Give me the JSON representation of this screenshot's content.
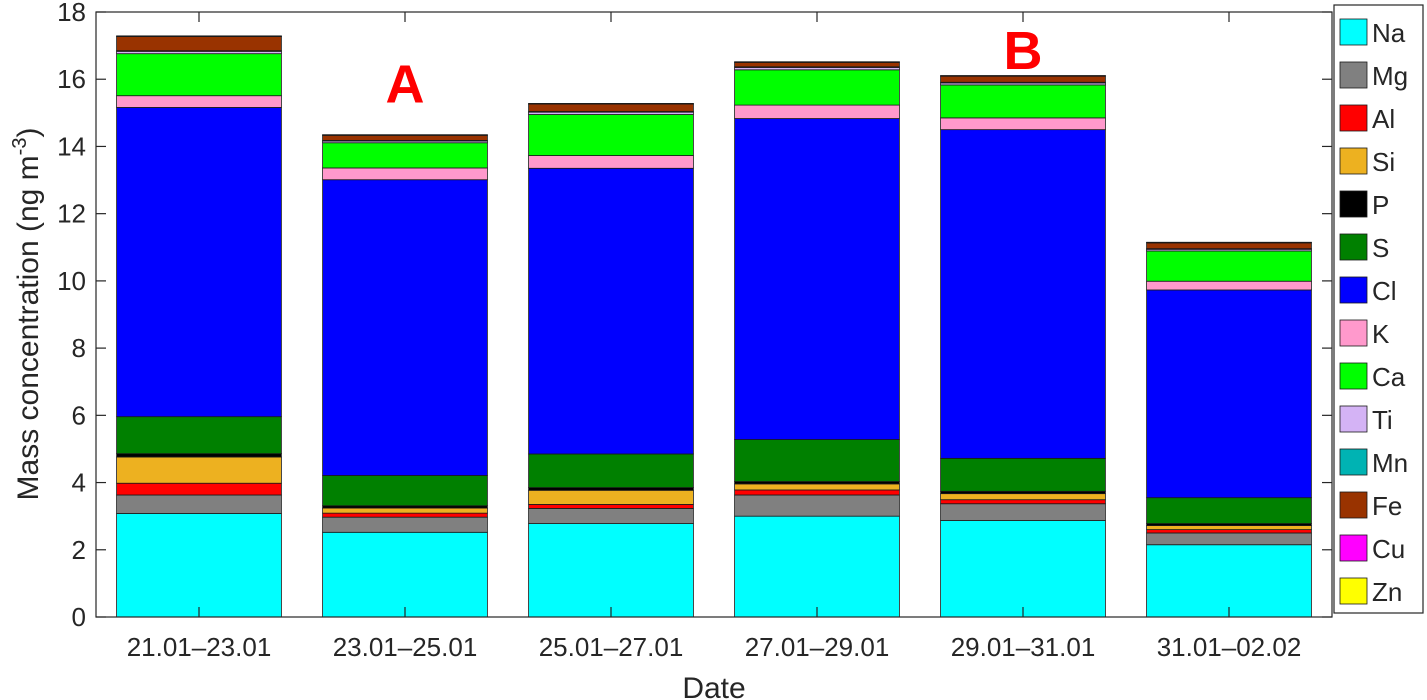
{
  "chart_data": {
    "type": "bar",
    "stacked": true,
    "title": "",
    "xlabel": "Date",
    "ylabel": "Mass concentration (ng m",
    "ylabel_superscript": "-3",
    "ylabel_close": ")",
    "ylim": [
      0,
      18
    ],
    "yticks": [
      0,
      2,
      4,
      6,
      8,
      10,
      12,
      14,
      16,
      18
    ],
    "grid": false,
    "legend_position": "right",
    "categories": [
      "21.01–23.01",
      "23.01–25.01",
      "25.01–27.01",
      "27.01–29.01",
      "29.01–31.01",
      "31.01–02.02"
    ],
    "series": [
      {
        "name": "Na",
        "color": "#00ffff",
        "values": [
          3.08,
          2.52,
          2.78,
          3.0,
          2.87,
          2.15
        ]
      },
      {
        "name": "Mg",
        "color": "#808080",
        "values": [
          0.55,
          0.45,
          0.45,
          0.63,
          0.5,
          0.35
        ]
      },
      {
        "name": "Al",
        "color": "#ff0000",
        "values": [
          0.35,
          0.12,
          0.12,
          0.15,
          0.12,
          0.1
        ]
      },
      {
        "name": "Si",
        "color": "#edb120",
        "values": [
          0.78,
          0.15,
          0.42,
          0.18,
          0.18,
          0.12
        ]
      },
      {
        "name": "P",
        "color": "#000000",
        "values": [
          0.1,
          0.07,
          0.08,
          0.07,
          0.07,
          0.06
        ]
      },
      {
        "name": "S",
        "color": "#008000",
        "values": [
          1.1,
          0.9,
          1.0,
          1.25,
          0.98,
          0.77
        ]
      },
      {
        "name": "Cl",
        "color": "#0000ff",
        "values": [
          9.2,
          8.8,
          8.5,
          9.55,
          9.78,
          6.18
        ]
      },
      {
        "name": "K",
        "color": "#ff99cc",
        "values": [
          0.35,
          0.35,
          0.38,
          0.4,
          0.35,
          0.26
        ]
      },
      {
        "name": "Ca",
        "color": "#00ff00",
        "values": [
          1.25,
          0.75,
          1.22,
          1.05,
          0.98,
          0.9
        ]
      },
      {
        "name": "Ti",
        "color": "#d4b3f5",
        "values": [
          0.07,
          0.05,
          0.07,
          0.07,
          0.06,
          0.05
        ]
      },
      {
        "name": "Mn",
        "color": "#00b3b3",
        "values": [
          0.02,
          0.02,
          0.02,
          0.02,
          0.02,
          0.02
        ]
      },
      {
        "name": "Fe",
        "color": "#993300",
        "values": [
          0.42,
          0.15,
          0.22,
          0.13,
          0.18,
          0.17
        ]
      },
      {
        "name": "Cu",
        "color": "#ff00ff",
        "values": [
          0.01,
          0.01,
          0.01,
          0.01,
          0.01,
          0.01
        ]
      },
      {
        "name": "Zn",
        "color": "#ffff00",
        "values": [
          0.01,
          0.01,
          0.01,
          0.01,
          0.01,
          0.01
        ]
      }
    ],
    "annotations": [
      {
        "text": "A",
        "category_index": 1,
        "y": 15.9
      },
      {
        "text": "B",
        "category_index": 4,
        "y": 16.9
      }
    ]
  }
}
